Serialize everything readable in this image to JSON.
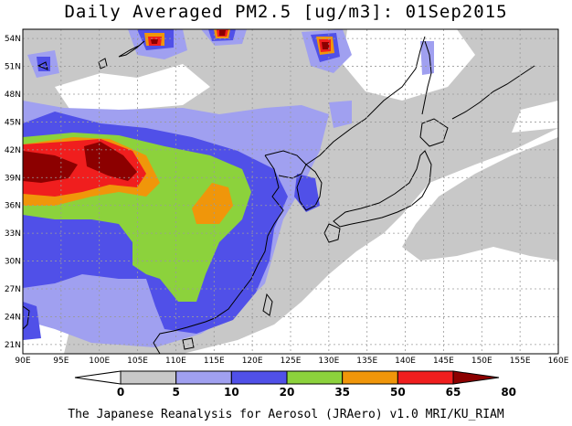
{
  "title": "Daily Averaged PM2.5 [ug/m3]: 01Sep2015",
  "footer": "The Japanese Reanalysis for Aerosol (JRAero) v1.0 MRI/KU_RIAM",
  "map": {
    "lon_range": [
      90,
      160
    ],
    "lat_range": [
      20,
      55
    ],
    "x_ticks": [
      "90E",
      "95E",
      "100E",
      "105E",
      "110E",
      "115E",
      "120E",
      "125E",
      "130E",
      "135E",
      "140E",
      "145E",
      "150E",
      "155E",
      "160E"
    ],
    "y_ticks": [
      "21N",
      "24N",
      "27N",
      "30N",
      "33N",
      "36N",
      "39N",
      "42N",
      "45N",
      "48N",
      "51N",
      "54N"
    ]
  },
  "colorbar": {
    "labels": [
      "0",
      "5",
      "10",
      "20",
      "35",
      "50",
      "65",
      "80"
    ],
    "colors": [
      "#ffffff",
      "#c8c8c8",
      "#a0a0f0",
      "#5050e8",
      "#8cd23c",
      "#f0960a",
      "#f01e1e",
      "#8c0000"
    ]
  }
}
